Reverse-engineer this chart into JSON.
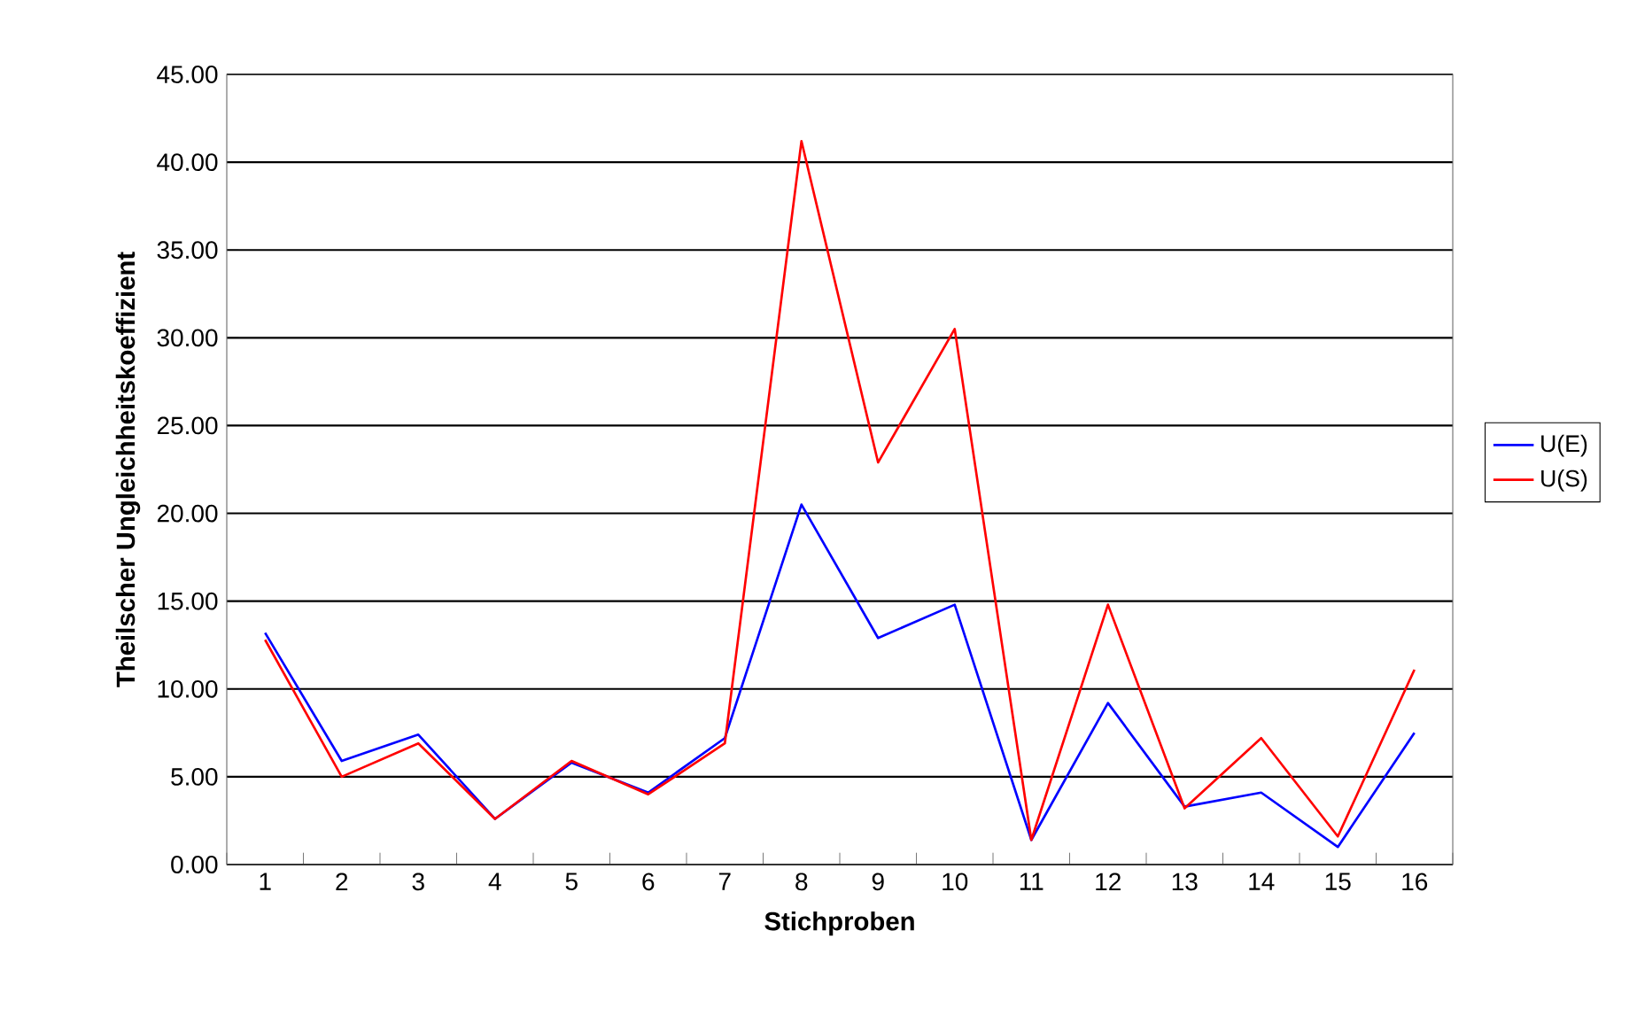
{
  "chart_data": {
    "type": "line",
    "xlabel": "Stichproben",
    "ylabel": "Theilscher Ungleichheitskoeffizient",
    "categories": [
      "1",
      "2",
      "3",
      "4",
      "5",
      "6",
      "7",
      "8",
      "9",
      "10",
      "11",
      "12",
      "13",
      "14",
      "15",
      "16"
    ],
    "series": [
      {
        "name": "U(E)",
        "color": "#0000ff",
        "values": [
          13.2,
          5.9,
          7.4,
          2.6,
          5.8,
          4.1,
          7.2,
          20.5,
          12.9,
          14.8,
          1.4,
          9.2,
          3.3,
          4.1,
          1.0,
          7.5
        ]
      },
      {
        "name": "U(S)",
        "color": "#ff0000",
        "values": [
          12.8,
          5.0,
          6.9,
          2.6,
          5.9,
          4.0,
          6.9,
          41.2,
          22.9,
          30.5,
          1.4,
          14.8,
          3.2,
          7.2,
          1.6,
          11.1
        ]
      }
    ],
    "ylim": [
      0,
      45
    ],
    "yticks": [
      {
        "value": 0,
        "label": "0.00"
      },
      {
        "value": 5,
        "label": "5.00"
      },
      {
        "value": 10,
        "label": "10.00"
      },
      {
        "value": 15,
        "label": "15.00"
      },
      {
        "value": 20,
        "label": "20.00"
      },
      {
        "value": 25,
        "label": "25.00"
      },
      {
        "value": 30,
        "label": "30.00"
      },
      {
        "value": 35,
        "label": "35.00"
      },
      {
        "value": 40,
        "label": "40.00"
      },
      {
        "value": 45,
        "label": "45.00"
      }
    ],
    "grid": "y",
    "legend": "right",
    "marker": "none",
    "line_style": "solid"
  }
}
